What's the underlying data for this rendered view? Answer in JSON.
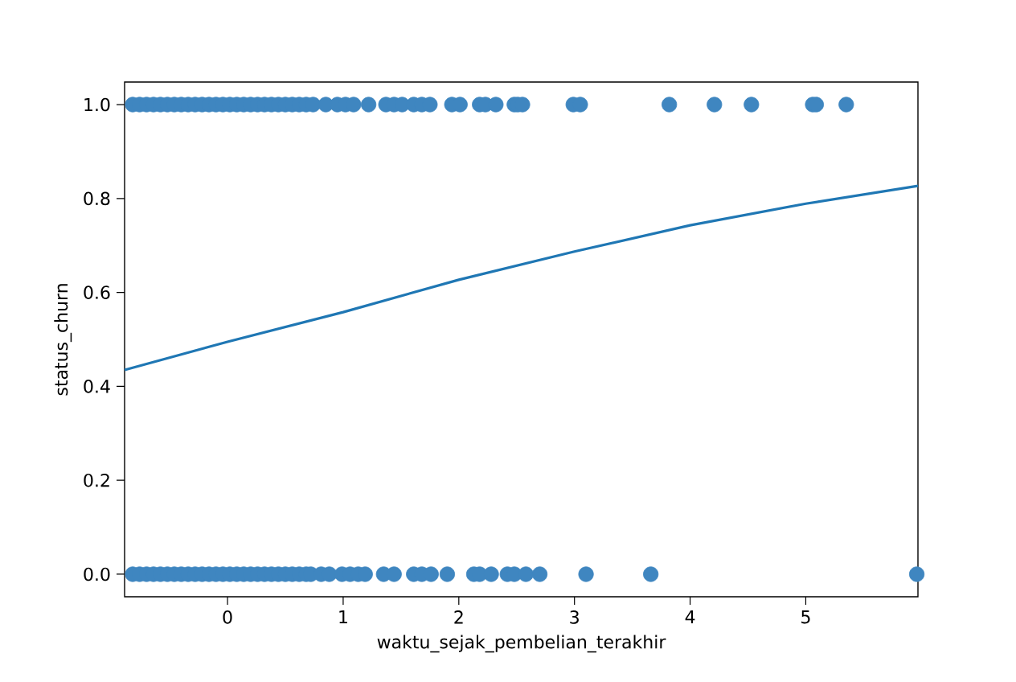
{
  "chart_data": {
    "type": "scatter",
    "xlabel": "waktu_sejak_pembelian_terakhir",
    "ylabel": "status_churn",
    "xlim": [
      -0.89,
      5.97
    ],
    "ylim": [
      -0.048,
      1.048
    ],
    "xticks": [
      0,
      1,
      2,
      3,
      4,
      5
    ],
    "yticks": [
      {
        "value": 0,
        "label": "0.0"
      },
      {
        "value": 0.2,
        "label": "0.2"
      },
      {
        "value": 0.4,
        "label": "0.4"
      },
      {
        "value": 0.6,
        "label": "0.6"
      },
      {
        "value": 0.8,
        "label": "0.8"
      },
      {
        "value": 1,
        "label": "1.0"
      }
    ],
    "grid": false,
    "series": [
      {
        "marker": "circle",
        "color": "#3f86c0",
        "x": [
          -0.82,
          -0.76,
          -0.7,
          -0.64,
          -0.58,
          -0.52,
          -0.46,
          -0.4,
          -0.34,
          -0.28,
          -0.22,
          -0.16,
          -0.1,
          -0.04,
          0.02,
          0.08,
          0.14,
          0.2,
          0.26,
          0.32,
          0.38,
          0.44,
          0.5,
          0.56,
          0.62,
          0.68,
          0.74,
          0.85,
          0.95,
          1.02,
          1.09,
          1.22,
          1.37,
          1.44,
          1.51,
          1.61,
          1.68,
          1.75,
          1.94,
          2.01,
          2.18,
          2.23,
          2.32,
          2.48,
          2.51,
          2.55,
          2.99,
          3.05,
          3.82,
          4.21,
          4.53,
          5.06,
          5.09,
          5.35,
          -0.82,
          -0.76,
          -0.7,
          -0.64,
          -0.58,
          -0.52,
          -0.46,
          -0.4,
          -0.34,
          -0.28,
          -0.22,
          -0.16,
          -0.1,
          -0.04,
          0.02,
          0.08,
          0.14,
          0.2,
          0.26,
          0.32,
          0.38,
          0.44,
          0.5,
          0.56,
          0.62,
          0.68,
          0.72,
          0.81,
          0.88,
          0.99,
          1.06,
          1.13,
          1.19,
          1.35,
          1.44,
          1.61,
          1.68,
          1.76,
          1.9,
          2.13,
          2.18,
          2.28,
          2.42,
          2.48,
          2.58,
          2.7,
          3.1,
          3.66,
          5.96
        ],
        "values": [
          1,
          1,
          1,
          1,
          1,
          1,
          1,
          1,
          1,
          1,
          1,
          1,
          1,
          1,
          1,
          1,
          1,
          1,
          1,
          1,
          1,
          1,
          1,
          1,
          1,
          1,
          1,
          1,
          1,
          1,
          1,
          1,
          1,
          1,
          1,
          1,
          1,
          1,
          1,
          1,
          1,
          1,
          1,
          1,
          1,
          1,
          1,
          1,
          1,
          1,
          1,
          1,
          1,
          1,
          0,
          0,
          0,
          0,
          0,
          0,
          0,
          0,
          0,
          0,
          0,
          0,
          0,
          0,
          0,
          0,
          0,
          0,
          0,
          0,
          0,
          0,
          0,
          0,
          0,
          0,
          0,
          0,
          0,
          0,
          0,
          0,
          0,
          0,
          0,
          0,
          0,
          0,
          0,
          0,
          0,
          0,
          0,
          0,
          0,
          0,
          0,
          0,
          0
        ]
      },
      {
        "type": "line",
        "marker": "none",
        "color": "#1f77b4",
        "x": [
          -0.89,
          0,
          1,
          2,
          3,
          4,
          5,
          5.97
        ],
        "values": [
          0.435,
          0.495,
          0.558,
          0.627,
          0.687,
          0.743,
          0.789,
          0.827
        ]
      }
    ]
  }
}
